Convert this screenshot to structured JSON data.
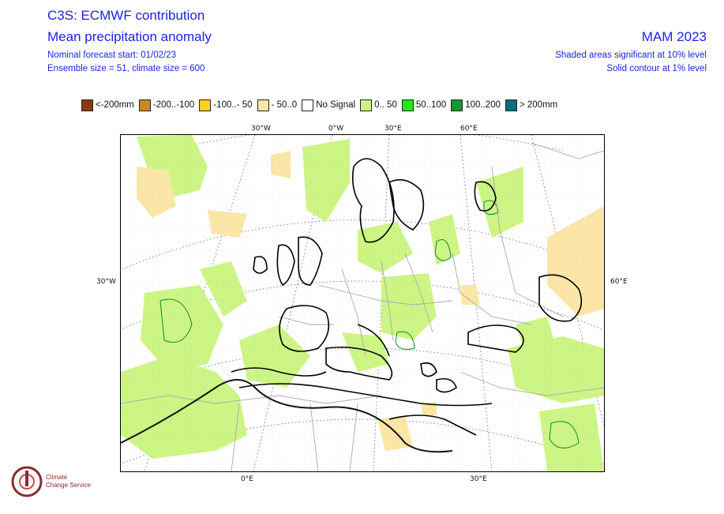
{
  "header": {
    "title": "C3S: ECMWF contribution",
    "subtitle": "Mean precipitation anomaly",
    "forecast_start": "Nominal forecast start: 01/02/23",
    "ensemble": "Ensemble size = 51, climate size = 600",
    "season": "MAM 2023",
    "significance_shaded": "Shaded areas significant at 10% level",
    "significance_contour": "Solid contour at 1% level"
  },
  "legend": [
    {
      "label": "<-200mm",
      "color": "#8b3a0f"
    },
    {
      "label": "-200..-100",
      "color": "#cc8a1e"
    },
    {
      "label": "-100..- 50",
      "color": "#ffd21e"
    },
    {
      "label": "- 50..0",
      "color": "#fbe6a8"
    },
    {
      "label": "No Signal",
      "color": "#ffffff"
    },
    {
      "label": "0.. 50",
      "color": "#cdf585"
    },
    {
      "label": "50..100",
      "color": "#27e51c"
    },
    {
      "label": "100..200",
      "color": "#0c9a34"
    },
    {
      "label": "> 200mm",
      "color": "#0b6e76"
    }
  ],
  "axes": {
    "top_ticks": [
      "30°W",
      "0°W",
      "30°E",
      "60°E"
    ],
    "left_tick": "30°W",
    "right_tick": "60°E",
    "bottom_ticks": [
      "0°E",
      "30°E"
    ]
  },
  "logo": {
    "org_line1": "Climate",
    "org_line2": "Change Service"
  }
}
